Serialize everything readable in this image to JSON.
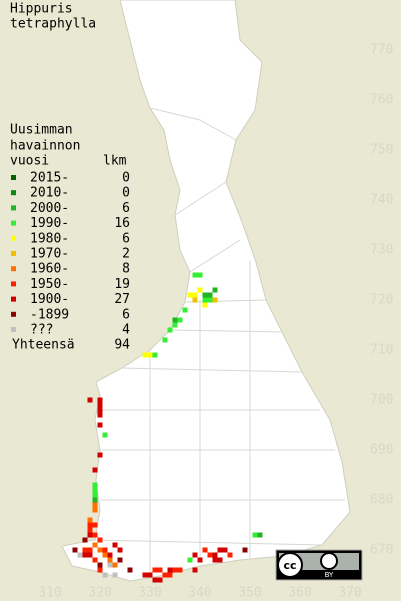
{
  "chart_data": {
    "type": "grid-map",
    "title": [
      "Hippuris",
      "tetraphylla"
    ],
    "legend_title": [
      "Uusimman",
      "havainnon",
      "vuosi"
    ],
    "count_header": "lkm",
    "total_label": "Yhteensä",
    "total": 94,
    "xlim": [
      300,
      380
    ],
    "ylim": [
      660,
      780
    ],
    "xticks": [
      310,
      320,
      330,
      340,
      350,
      360,
      370
    ],
    "yticks": [
      670,
      680,
      690,
      700,
      710,
      720,
      730,
      740,
      750,
      760,
      770
    ],
    "license": "BY",
    "series": [
      {
        "name": "2015-",
        "color": "#006400",
        "count": 0,
        "points": []
      },
      {
        "name": "2010-",
        "color": "#0a8a0a",
        "count": 0,
        "points": []
      },
      {
        "name": "2000-",
        "color": "#22b422",
        "count": 6,
        "points": [
          [
            341,
            721
          ],
          [
            343,
            722
          ],
          [
            342,
            721
          ],
          [
            335,
            716
          ],
          [
            319,
            680
          ],
          [
            352,
            673
          ]
        ]
      },
      {
        "name": "1990-",
        "color": "#33ee33",
        "count": 16,
        "points": [
          [
            339,
            725
          ],
          [
            340,
            725
          ],
          [
            341,
            720
          ],
          [
            342,
            720
          ],
          [
            337,
            718
          ],
          [
            336,
            716
          ],
          [
            335,
            715
          ],
          [
            334,
            714
          ],
          [
            333,
            712
          ],
          [
            331,
            709
          ],
          [
            321,
            693
          ],
          [
            319,
            683
          ],
          [
            319,
            682
          ],
          [
            319,
            681
          ],
          [
            351,
            673
          ],
          [
            338,
            668
          ]
        ]
      },
      {
        "name": "1980-",
        "color": "#ffff00",
        "count": 6,
        "points": [
          [
            338,
            721
          ],
          [
            339,
            721
          ],
          [
            340,
            722
          ],
          [
            329,
            709
          ],
          [
            330,
            709
          ],
          [
            341,
            719
          ]
        ]
      },
      {
        "name": "1970-",
        "color": "#f0c000",
        "count": 2,
        "points": [
          [
            339,
            720
          ],
          [
            343,
            720
          ]
        ]
      },
      {
        "name": "1960-",
        "color": "#ff7000",
        "count": 8,
        "points": [
          [
            319,
            679
          ],
          [
            318,
            676
          ],
          [
            319,
            671
          ],
          [
            320,
            670
          ],
          [
            321,
            669
          ],
          [
            322,
            668
          ],
          [
            323,
            667
          ],
          [
            319,
            678
          ]
        ]
      },
      {
        "name": "1950-",
        "color": "#ff2000",
        "count": 19,
        "points": [
          [
            318,
            675
          ],
          [
            319,
            675
          ],
          [
            318,
            674
          ],
          [
            319,
            673
          ],
          [
            320,
            672
          ],
          [
            317,
            670
          ],
          [
            318,
            670
          ],
          [
            321,
            670
          ],
          [
            319,
            668
          ],
          [
            320,
            666
          ],
          [
            331,
            666
          ],
          [
            332,
            666
          ],
          [
            333,
            665
          ],
          [
            334,
            665
          ],
          [
            335,
            666
          ],
          [
            336,
            666
          ],
          [
            341,
            670
          ],
          [
            342,
            669
          ],
          [
            346,
            669
          ]
        ]
      },
      {
        "name": "1900-",
        "color": "#d00000",
        "count": 27,
        "points": [
          [
            318,
            700
          ],
          [
            320,
            700
          ],
          [
            320,
            699
          ],
          [
            320,
            698
          ],
          [
            320,
            697
          ],
          [
            320,
            695
          ],
          [
            320,
            689
          ],
          [
            319,
            686
          ],
          [
            318,
            673
          ],
          [
            317,
            669
          ],
          [
            318,
            669
          ],
          [
            322,
            669
          ],
          [
            323,
            671
          ],
          [
            324,
            670
          ],
          [
            329,
            665
          ],
          [
            330,
            665
          ],
          [
            331,
            664
          ],
          [
            332,
            664
          ],
          [
            334,
            666
          ],
          [
            339,
            669
          ],
          [
            340,
            668
          ],
          [
            343,
            669
          ],
          [
            344,
            670
          ],
          [
            345,
            670
          ],
          [
            343,
            668
          ],
          [
            344,
            668
          ],
          [
            339,
            666
          ]
        ]
      },
      {
        "name": "-1899",
        "color": "#8b0000",
        "count": 6,
        "points": [
          [
            317,
            672
          ],
          [
            315,
            670
          ],
          [
            320,
            667
          ],
          [
            326,
            666
          ],
          [
            324,
            668
          ],
          [
            349,
            670
          ]
        ]
      },
      {
        "name": "???",
        "color": "#c0c0c0",
        "count": 4,
        "points": [
          [
            316,
            669
          ],
          [
            322,
            667
          ],
          [
            323,
            665
          ],
          [
            321,
            665
          ]
        ]
      }
    ]
  }
}
